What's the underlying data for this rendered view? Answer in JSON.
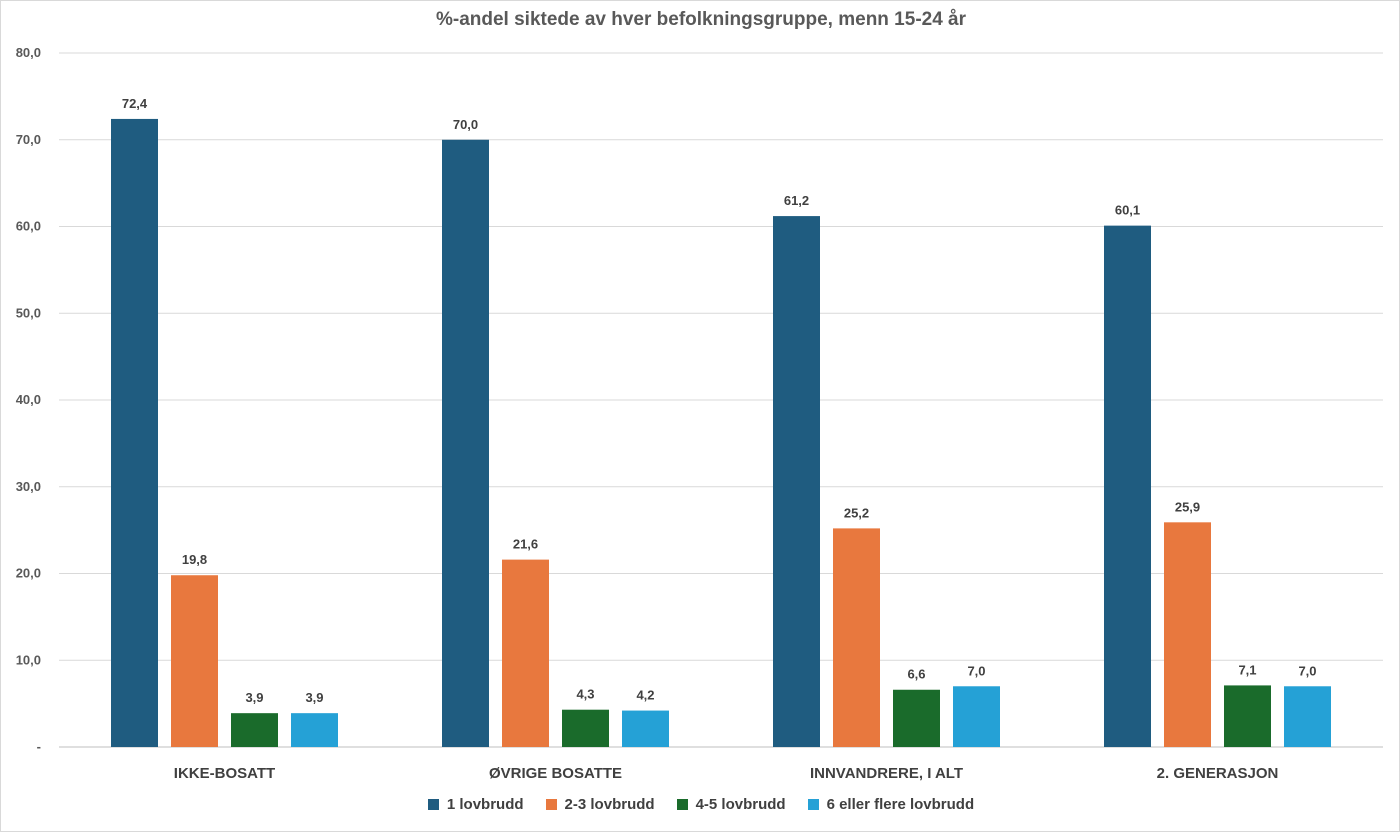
{
  "chart_data": {
    "type": "bar",
    "title": "%-andel siktede  av hver befolkningsgruppe, menn 15-24 år",
    "xlabel": "",
    "ylabel": "",
    "ylim": [
      0,
      80
    ],
    "yticks": [
      {
        "value": 0,
        "label": "-"
      },
      {
        "value": 10,
        "label": "10,0"
      },
      {
        "value": 20,
        "label": "20,0"
      },
      {
        "value": 30,
        "label": "30,0"
      },
      {
        "value": 40,
        "label": "40,0"
      },
      {
        "value": 50,
        "label": "50,0"
      },
      {
        "value": 60,
        "label": "60,0"
      },
      {
        "value": 70,
        "label": "70,0"
      },
      {
        "value": 80,
        "label": "80,0"
      }
    ],
    "grid": true,
    "legend_position": "bottom",
    "categories": [
      "IKKE-BOSATT",
      "ØVRIGE BOSATTE",
      "INNVANDRERE, I ALT",
      "2. GENERASJON"
    ],
    "series": [
      {
        "name": "1 lovbrudd",
        "color": "#1f5c80",
        "values": [
          72.4,
          70.0,
          61.2,
          60.1
        ],
        "labels": [
          "72,4",
          "70,0",
          "61,2",
          "60,1"
        ]
      },
      {
        "name": "2-3 lovbrudd",
        "color": "#e8783e",
        "values": [
          19.8,
          21.6,
          25.2,
          25.9
        ],
        "labels": [
          "19,8",
          "21,6",
          "25,2",
          "25,9"
        ]
      },
      {
        "name": "4-5 lovbrudd",
        "color": "#1a6b2b",
        "values": [
          3.9,
          4.3,
          6.6,
          7.1
        ],
        "labels": [
          "3,9",
          "4,3",
          "6,6",
          "7,1"
        ]
      },
      {
        "name": "6 eller flere lovbrudd",
        "color": "#25a1d6",
        "values": [
          3.9,
          4.2,
          7.0,
          7.0
        ],
        "labels": [
          "3,9",
          "4,2",
          "7,0",
          "7,0"
        ]
      }
    ]
  }
}
